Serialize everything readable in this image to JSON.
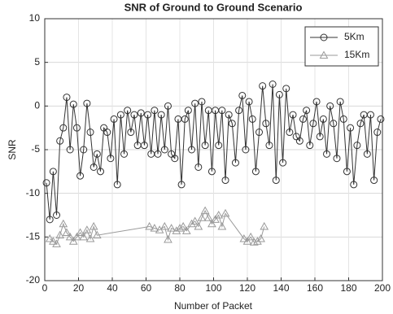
{
  "chart_data": {
    "type": "line",
    "title": "SNR of Ground to Ground Scenario",
    "x_label": "Number of Packet",
    "y_label": "SNR",
    "xlim": [
      0,
      200
    ],
    "xticks": [
      0,
      20,
      40,
      60,
      80,
      100,
      120,
      140,
      160,
      180,
      200
    ],
    "ylim": [
      -20,
      10
    ],
    "yticks": [
      -20,
      -15,
      -10,
      -5,
      0,
      5,
      10
    ],
    "grid": true,
    "legend": "upper right",
    "series": [
      {
        "name": "5Km",
        "color": "#333333",
        "marker": "circle",
        "x": [
          1,
          3,
          5,
          7,
          9,
          11,
          13,
          15,
          17,
          19,
          21,
          23,
          25,
          27,
          29,
          31,
          33,
          35,
          37,
          39,
          41,
          43,
          45,
          47,
          49,
          51,
          53,
          55,
          57,
          59,
          61,
          63,
          65,
          67,
          69,
          71,
          73,
          75,
          77,
          79,
          81,
          83,
          85,
          87,
          89,
          91,
          93,
          95,
          97,
          99,
          101,
          103,
          105,
          107,
          109,
          111,
          113,
          115,
          117,
          119,
          121,
          123,
          125,
          127,
          129,
          131,
          133,
          135,
          137,
          139,
          141,
          143,
          145,
          147,
          149,
          151,
          153,
          155,
          157,
          159,
          161,
          163,
          165,
          167,
          169,
          171,
          173,
          175,
          177,
          179,
          181,
          183,
          185,
          187,
          189,
          191,
          193,
          195,
          197,
          199
        ],
        "values": [
          -8.8,
          -13,
          -7.5,
          -12.5,
          -4,
          -2.5,
          1,
          -5,
          0.2,
          -2.5,
          -8,
          -5,
          0.3,
          -3,
          -7,
          -5.5,
          -7.5,
          -2.5,
          -3,
          -6,
          -1.5,
          -9,
          -1,
          -5.5,
          -0.5,
          -3,
          -1,
          -4.5,
          -0.8,
          -4.5,
          -1,
          -5.5,
          -0.5,
          -5.5,
          -1,
          -5,
          0,
          -5.5,
          -6,
          -1.5,
          -9,
          -1.5,
          -0.5,
          -5,
          0.3,
          -7,
          0.5,
          -4.5,
          -0.5,
          -7.5,
          -0.5,
          -4.5,
          -0.5,
          -8.5,
          -1,
          -2,
          -6.5,
          -0.5,
          1.2,
          -5,
          0.5,
          -1.5,
          -7.5,
          -3,
          2.3,
          -2,
          -4.5,
          2.5,
          -8.5,
          1.3,
          -6.5,
          2,
          -3,
          -1,
          -3.5,
          -4,
          -1.5,
          -0.5,
          -4.5,
          -2,
          0.5,
          -3.5,
          -1.5,
          -5.5,
          0,
          -2,
          -6,
          0.5,
          -1.5,
          -7.5,
          -2.5,
          -9,
          -4.5,
          -2,
          -1,
          -5.5,
          -1,
          -8.5,
          -3,
          -1.5
        ]
      },
      {
        "name": "15Km",
        "color": "#9a9a9a",
        "marker": "triangle",
        "x": [
          3,
          5,
          7,
          9,
          11,
          13,
          15,
          17,
          19,
          21,
          23,
          25,
          27,
          29,
          31,
          62,
          65,
          68,
          71,
          73,
          75,
          78,
          80,
          82,
          84,
          87,
          89,
          91,
          93,
          95,
          97,
          99,
          101,
          103,
          105,
          107,
          118,
          120,
          122,
          124,
          126,
          128,
          130
        ],
        "values": [
          -15.2,
          -15.5,
          -15.8,
          -14.8,
          -13.5,
          -14.5,
          -15,
          -15.5,
          -15,
          -14.5,
          -15,
          -14.2,
          -15.2,
          -13.8,
          -14.8,
          -13.8,
          -14,
          -14.2,
          -13.8,
          -15.3,
          -14,
          -14.3,
          -14,
          -13.8,
          -14.3,
          -13.5,
          -13.2,
          -13.8,
          -12.8,
          -12,
          -12.8,
          -13.5,
          -13,
          -12.5,
          -13.8,
          -12.3,
          -15.2,
          -15.5,
          -15,
          -15.6,
          -15.5,
          -15.2,
          -13.8
        ]
      }
    ]
  }
}
